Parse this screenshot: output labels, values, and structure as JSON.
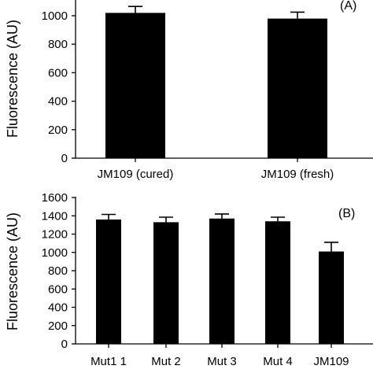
{
  "chart_data": [
    {
      "type": "bar",
      "panel_label": "(A)",
      "ylabel": "Fluorescence (AU)",
      "xlabel": "",
      "categories": [
        "JM109 (cured)",
        "JM109 (fresh)"
      ],
      "values": [
        1020,
        980
      ],
      "errors": [
        45,
        45
      ],
      "ylim": [
        0,
        1000
      ],
      "yticks": [
        0,
        200,
        400,
        600,
        800,
        1000
      ],
      "bar_color": "#000000"
    },
    {
      "type": "bar",
      "panel_label": "(B)",
      "ylabel": "Fluorescence (AU)",
      "xlabel": "",
      "categories": [
        "Mut1 1",
        "Mut 2",
        "Mut 3",
        "Mut 4",
        "JM109"
      ],
      "values": [
        1360,
        1330,
        1370,
        1340,
        1010
      ],
      "errors": [
        55,
        55,
        50,
        45,
        100
      ],
      "ylim": [
        0,
        1600
      ],
      "yticks": [
        0,
        200,
        400,
        600,
        800,
        1000,
        1200,
        1400,
        1600
      ],
      "bar_color": "#000000"
    }
  ]
}
